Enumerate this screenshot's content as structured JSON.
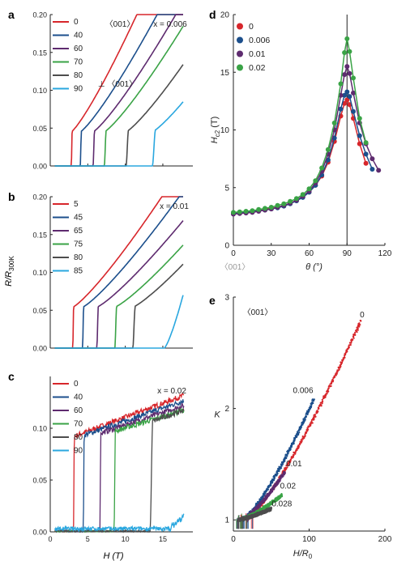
{
  "figure": {
    "shared_ylabel": "R/R300K",
    "shared_ylabel_main": "R/R",
    "shared_ylabel_sub": "300K",
    "shared_xlabel": "H (T)"
  },
  "chart_data": [
    {
      "panel": "a",
      "type": "line",
      "annotation": "〈001〉",
      "annotation2": "x = 0.006",
      "annotation3": "⊥ 〈001〉",
      "xlim": [
        0,
        19
      ],
      "ylim": [
        0,
        0.2
      ],
      "xticks": [
        "0",
        "5",
        "10",
        "15"
      ],
      "yticks": [
        "0.00",
        "0.05",
        "0.10",
        "0.15",
        "0.20"
      ],
      "show_xticklabels": false,
      "legend_position": "top-left",
      "series": [
        {
          "name": "0",
          "color": "#d7262b",
          "hc": 2.8,
          "w": 0.12,
          "base": 0.045,
          "k": 0.0115,
          "p": 1.2,
          "xmax": 17.7
        },
        {
          "name": "40",
          "color": "#1c4f8c",
          "hc": 4.0,
          "w": 0.15,
          "base": 0.045,
          "k": 0.0095,
          "p": 1.2,
          "xmax": 17.7
        },
        {
          "name": "60",
          "color": "#5e2b6f",
          "hc": 5.7,
          "w": 0.2,
          "base": 0.045,
          "k": 0.0087,
          "p": 1.2,
          "xmax": 17.7
        },
        {
          "name": "70",
          "color": "#3aa346",
          "hc": 7.2,
          "w": 0.25,
          "base": 0.045,
          "k": 0.0083,
          "p": 1.2,
          "xmax": 17.7
        },
        {
          "name": "80",
          "color": "#4d4d4d",
          "hc": 10.1,
          "w": 0.32,
          "base": 0.045,
          "k": 0.0078,
          "p": 1.2,
          "xmax": 17.7
        },
        {
          "name": "90",
          "color": "#2aa7df",
          "hc": 13.6,
          "w": 0.42,
          "base": 0.045,
          "k": 0.0073,
          "p": 1.2,
          "xmax": 17.7
        }
      ]
    },
    {
      "panel": "b",
      "type": "line",
      "annotation": "x = 0.01",
      "xlim": [
        0,
        19
      ],
      "ylim": [
        0,
        0.2
      ],
      "xticks": [
        "0",
        "5",
        "10",
        "15"
      ],
      "yticks": [
        "0.00",
        "0.05",
        "0.10",
        "0.15",
        "0.20"
      ],
      "show_xticklabels": false,
      "legend_position": "top-left",
      "series": [
        {
          "name": "5",
          "color": "#d7262b",
          "hc": 3.0,
          "w": 0.12,
          "base": 0.054,
          "k": 0.0075,
          "p": 1.2,
          "xmax": 17.7
        },
        {
          "name": "45",
          "color": "#1c4f8c",
          "hc": 4.3,
          "w": 0.15,
          "base": 0.054,
          "k": 0.0068,
          "p": 1.2,
          "xmax": 17.7
        },
        {
          "name": "65",
          "color": "#5e2b6f",
          "hc": 6.2,
          "w": 0.2,
          "base": 0.054,
          "k": 0.0061,
          "p": 1.2,
          "xmax": 17.7
        },
        {
          "name": "75",
          "color": "#3aa346",
          "hc": 8.6,
          "w": 0.25,
          "base": 0.054,
          "k": 0.0058,
          "p": 1.2,
          "xmax": 17.7
        },
        {
          "name": "80",
          "color": "#4d4d4d",
          "hc": 11.0,
          "w": 0.32,
          "base": 0.054,
          "k": 0.0058,
          "p": 1.2,
          "xmax": 17.7
        },
        {
          "name": "85",
          "color": "#2aa7df",
          "hc": 17.2,
          "w": 0.32,
          "base": 0.054,
          "k": 0.0,
          "p": 1.0,
          "xmax": 17.7
        }
      ]
    },
    {
      "panel": "c",
      "type": "line",
      "annotation": "x = 0.02",
      "xlim": [
        0,
        19
      ],
      "ylim": [
        0,
        0.15
      ],
      "xticks": [
        "0",
        "5",
        "10",
        "15"
      ],
      "yticks": [
        "0.00",
        "0.05",
        "0.10"
      ],
      "show_xticklabels": true,
      "legend_position": "top-left",
      "series": [
        {
          "name": "0",
          "color": "#d7262b",
          "hc": 3.1,
          "w": 0.1,
          "base": 0.092,
          "k": 0.0027,
          "p": 1.0,
          "xmax": 17.8,
          "noise": 0.0025
        },
        {
          "name": "40",
          "color": "#1c4f8c",
          "hc": 4.4,
          "w": 0.12,
          "base": 0.093,
          "k": 0.0025,
          "p": 1.0,
          "xmax": 17.8,
          "noise": 0.0025
        },
        {
          "name": "60",
          "color": "#5e2b6f",
          "hc": 6.6,
          "w": 0.15,
          "base": 0.095,
          "k": 0.0024,
          "p": 1.0,
          "xmax": 17.8,
          "noise": 0.0025
        },
        {
          "name": "70",
          "color": "#3aa346",
          "hc": 8.5,
          "w": 0.18,
          "base": 0.097,
          "k": 0.0022,
          "p": 1.0,
          "xmax": 17.8,
          "noise": 0.0025
        },
        {
          "name": "80",
          "color": "#4d4d4d",
          "hc": 13.3,
          "w": 0.35,
          "base": 0.106,
          "k": 0.0025,
          "p": 1.0,
          "xmax": 17.8,
          "noise": 0.0025
        },
        {
          "name": "90",
          "color": "#2aa7df",
          "hc": 17.6,
          "w": 0.18,
          "base": 0.02,
          "k": 0.0,
          "p": 1.0,
          "xmax": 17.8,
          "noise": 0.0015
        }
      ]
    },
    {
      "panel": "d",
      "type": "scatter",
      "ylabel_main": "H",
      "ylabel_sub": "c2",
      "ylabel_unit": " (T)",
      "xlabel": "θ (°)",
      "below_axis_label": "〈001〉",
      "xlim": [
        0,
        120
      ],
      "ylim": [
        0,
        20
      ],
      "xticks": [
        0,
        30,
        60,
        90,
        120
      ],
      "yticks": [
        0,
        5,
        10,
        15,
        20
      ],
      "vline_x": 90,
      "legend_position": "top-left",
      "series": [
        {
          "name": "0",
          "color": "#d7262b",
          "peak": 12.6,
          "xmax": 105,
          "points": [
            [
              0,
              2.8
            ],
            [
              5,
              2.85
            ],
            [
              10,
              2.9
            ],
            [
              15,
              2.95
            ],
            [
              20,
              3.0
            ],
            [
              25,
              3.1
            ],
            [
              30,
              3.2
            ],
            [
              35,
              3.3
            ],
            [
              40,
              3.45
            ],
            [
              45,
              3.65
            ],
            [
              50,
              3.9
            ],
            [
              55,
              4.2
            ],
            [
              60,
              4.6
            ],
            [
              65,
              5.2
            ],
            [
              70,
              6.0
            ],
            [
              75,
              7.2
            ],
            [
              80,
              9.0
            ],
            [
              85,
              11.2
            ],
            [
              88,
              12.3
            ],
            [
              90,
              12.6
            ],
            [
              92,
              12.2
            ],
            [
              95,
              11.0
            ],
            [
              100,
              8.8
            ],
            [
              105,
              7.1
            ]
          ]
        },
        {
          "name": "0.006",
          "color": "#1c4f8c",
          "peak": 13.3,
          "xmax": 110,
          "points": [
            [
              0,
              2.75
            ],
            [
              5,
              2.8
            ],
            [
              10,
              2.85
            ],
            [
              15,
              2.9
            ],
            [
              20,
              3.0
            ],
            [
              25,
              3.05
            ],
            [
              30,
              3.15
            ],
            [
              35,
              3.25
            ],
            [
              40,
              3.4
            ],
            [
              45,
              3.6
            ],
            [
              50,
              3.85
            ],
            [
              55,
              4.15
            ],
            [
              60,
              4.6
            ],
            [
              65,
              5.2
            ],
            [
              70,
              6.1
            ],
            [
              75,
              7.4
            ],
            [
              80,
              9.3
            ],
            [
              85,
              11.8
            ],
            [
              88,
              13.0
            ],
            [
              90,
              13.3
            ],
            [
              92,
              12.9
            ],
            [
              95,
              11.6
            ],
            [
              100,
              9.5
            ],
            [
              105,
              7.9
            ],
            [
              110,
              6.6
            ]
          ]
        },
        {
          "name": "0.01",
          "color": "#5e2b6f",
          "peak": 15.5,
          "xmax": 115,
          "points": [
            [
              0,
              2.7
            ],
            [
              5,
              2.75
            ],
            [
              10,
              2.8
            ],
            [
              15,
              2.85
            ],
            [
              20,
              2.95
            ],
            [
              25,
              3.05
            ],
            [
              30,
              3.15
            ],
            [
              35,
              3.3
            ],
            [
              40,
              3.45
            ],
            [
              45,
              3.65
            ],
            [
              50,
              3.9
            ],
            [
              55,
              4.25
            ],
            [
              60,
              4.7
            ],
            [
              65,
              5.4
            ],
            [
              70,
              6.4
            ],
            [
              75,
              7.9
            ],
            [
              80,
              10.0
            ],
            [
              85,
              13.0
            ],
            [
              88,
              14.8
            ],
            [
              90,
              15.5
            ],
            [
              92,
              14.9
            ],
            [
              95,
              13.2
            ],
            [
              100,
              10.6
            ],
            [
              105,
              8.8
            ],
            [
              110,
              7.5
            ],
            [
              115,
              6.5
            ]
          ]
        },
        {
          "name": "0.02",
          "color": "#3aa346",
          "peak": 17.9,
          "xmax": 105,
          "points": [
            [
              0,
              2.85
            ],
            [
              5,
              2.9
            ],
            [
              10,
              2.95
            ],
            [
              15,
              3.0
            ],
            [
              20,
              3.1
            ],
            [
              25,
              3.2
            ],
            [
              30,
              3.3
            ],
            [
              35,
              3.45
            ],
            [
              40,
              3.6
            ],
            [
              45,
              3.8
            ],
            [
              50,
              4.05
            ],
            [
              55,
              4.4
            ],
            [
              60,
              4.9
            ],
            [
              65,
              5.6
            ],
            [
              70,
              6.7
            ],
            [
              75,
              8.3
            ],
            [
              80,
              10.6
            ],
            [
              85,
              14.0
            ],
            [
              88,
              16.7
            ],
            [
              90,
              17.9
            ],
            [
              92,
              16.8
            ],
            [
              95,
              14.5
            ],
            [
              100,
              11.0
            ],
            [
              105,
              8.9
            ]
          ]
        }
      ]
    },
    {
      "panel": "e",
      "type": "scatter",
      "annotation": "〈001〉",
      "ylabel": "K",
      "xlabel_main": "H/R",
      "xlabel_sub": "0",
      "xlim": [
        0,
        200
      ],
      "ylim": [
        0.9,
        3
      ],
      "xticks": [
        0,
        100,
        200
      ],
      "yticks": [
        1,
        2,
        3
      ],
      "series": [
        {
          "name": "0",
          "color": "#d7262b",
          "xmin": 18,
          "xmax": 168,
          "ymin": 1.0,
          "ymax": 2.78,
          "p": 1.25
        },
        {
          "name": "0.006",
          "color": "#1c4f8c",
          "xmin": 12,
          "xmax": 106,
          "ymin": 1.0,
          "ymax": 2.08,
          "p": 1.3
        },
        {
          "name": "0.01",
          "color": "#5e2b6f",
          "xmin": 10,
          "xmax": 68,
          "ymin": 1.0,
          "ymax": 1.43,
          "p": 1.35
        },
        {
          "name": "0.02",
          "color": "#3aa346",
          "xmin": 8,
          "xmax": 64,
          "ymin": 1.0,
          "ymax": 1.22,
          "p": 1.3
        },
        {
          "name": "0.028",
          "color": "#4d4d4d",
          "xmin": 6,
          "xmax": 50,
          "ymin": 1.0,
          "ymax": 1.1,
          "p": 1.3
        }
      ],
      "curve_labels": [
        "0",
        "0.006",
        "0.01",
        "0.02",
        "0.028"
      ]
    }
  ]
}
